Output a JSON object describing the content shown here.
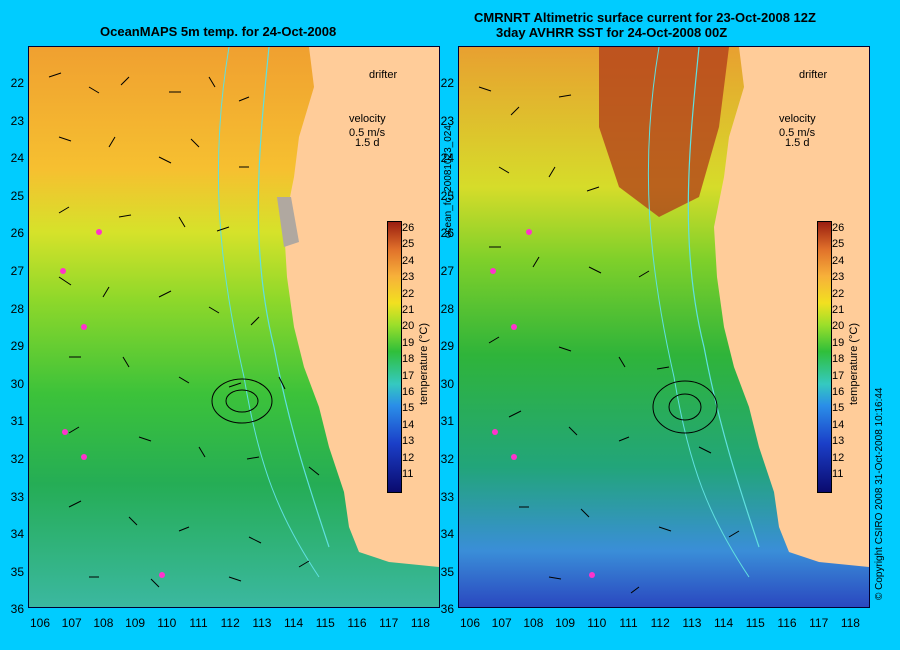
{
  "left_panel": {
    "title": "OceanMAPS 5m temp. for 24-Oct-2008",
    "drifter_label": "drifter",
    "velocity_label": "velocity",
    "velocity_scale": "0.5 m/s",
    "velocity_scale2": "1.5 d"
  },
  "right_panel": {
    "title_line1": "CMRNRT Altimetric surface current for 23-Oct-2008 12Z",
    "title_line2": "3day AVHRR SST for 24-Oct-2008 00Z",
    "drifter_label": "drifter",
    "velocity_label": "velocity",
    "velocity_scale": "0.5 m/s",
    "velocity_scale2": "1.5 d"
  },
  "side_id_text": "ocean_fc_20081023_024",
  "copyright_text": "© Copyright CSIRO 2008   31-Oct-2008 10:16:44",
  "colorbar": {
    "label": "temperature (°C)",
    "ticks": [
      "26",
      "25",
      "24",
      "23",
      "22",
      "21",
      "20",
      "19",
      "18",
      "17",
      "16",
      "15",
      "14",
      "13",
      "12",
      "11"
    ]
  },
  "lat_labels": [
    "22",
    "23",
    "24",
    "25",
    "26",
    "27",
    "28",
    "29",
    "30",
    "31",
    "32",
    "33",
    "34",
    "35",
    "36"
  ],
  "lon_labels": [
    "106",
    "107",
    "108",
    "109",
    "110",
    "111",
    "112",
    "113",
    "114",
    "115",
    "116",
    "117",
    "118"
  ]
}
